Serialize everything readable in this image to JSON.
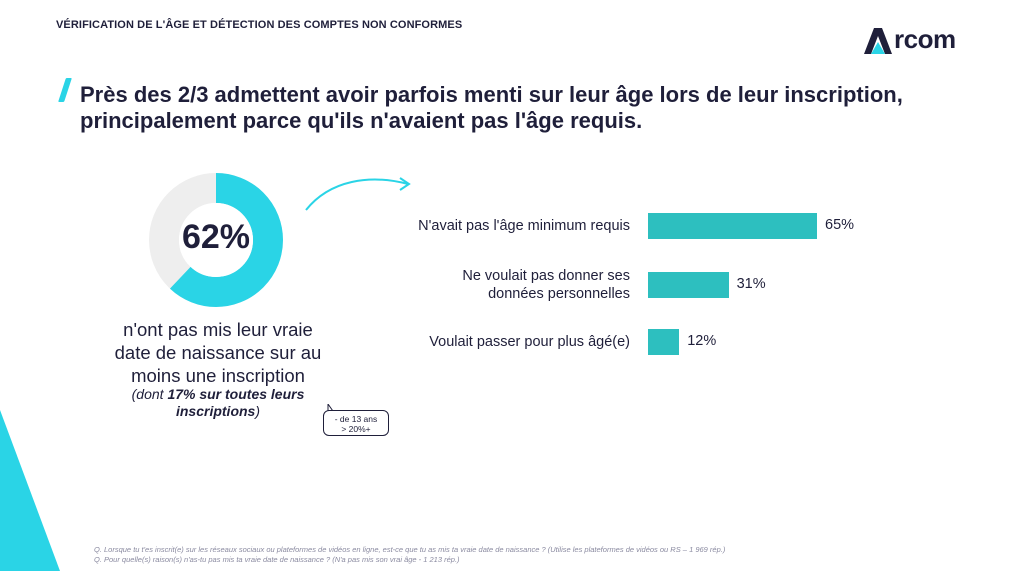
{
  "header": {
    "section_title": "VÉRIFICATION DE L'ÂGE ET DÉTECTION DES COMPTES NON CONFORMES",
    "logo_text": "rcom",
    "logo_letter": "A"
  },
  "headline": {
    "line1": "Près des 2/3 admettent avoir parfois menti sur leur âge lors de leur inscription,",
    "line2": "principalement parce qu'ils n'avaient pas l'âge requis."
  },
  "donut": {
    "value": "62%",
    "percent": 62,
    "caption_line1": "n'ont pas mis leur vraie",
    "caption_line2": "date de naissance sur au",
    "caption_line3": "moins une inscription",
    "note_prefix": "(dont ",
    "note_bold": "17% sur toutes leurs inscriptions",
    "note_suffix": ")"
  },
  "bubble": {
    "line1": "- de 13 ans",
    "line2": "> 20%+"
  },
  "chart_data": {
    "type": "bar",
    "orientation": "horizontal",
    "categories": [
      "N'avait pas l'âge minimum requis",
      "Ne voulait pas donner ses données personnelles",
      "Voulait passer pour plus âgé(e)"
    ],
    "label_lines": [
      [
        "N'avait pas l'âge minimum requis"
      ],
      [
        "Ne voulait pas donner ses",
        "données personnelles"
      ],
      [
        "Voulait passer pour plus âgé(e)"
      ]
    ],
    "values": [
      65,
      31,
      12
    ],
    "value_labels": [
      "65%",
      "31%",
      "12%"
    ],
    "unit": "%",
    "xlim": [
      0,
      100
    ],
    "color": "#2dbfbf"
  },
  "footer": {
    "q1": "Q. Lorsque tu t'es inscrit(e) sur les réseaux sociaux ou plateformes de vidéos en ligne, est-ce que tu as mis ta vraie date de naissance ? (Utilise les plateformes de vidéos ou RS – 1 969 rép.)",
    "q2": "Q. Pour quelle(s) raison(s) n'as-tu pas mis ta vraie date de naissance ? (N'a pas mis son vrai âge - 1 213 rép.)"
  },
  "colors": {
    "accent": "#2ad4e6",
    "bar": "#2dbfbf",
    "text": "#1f1f3a",
    "donut_rest": "#eeeeee"
  }
}
